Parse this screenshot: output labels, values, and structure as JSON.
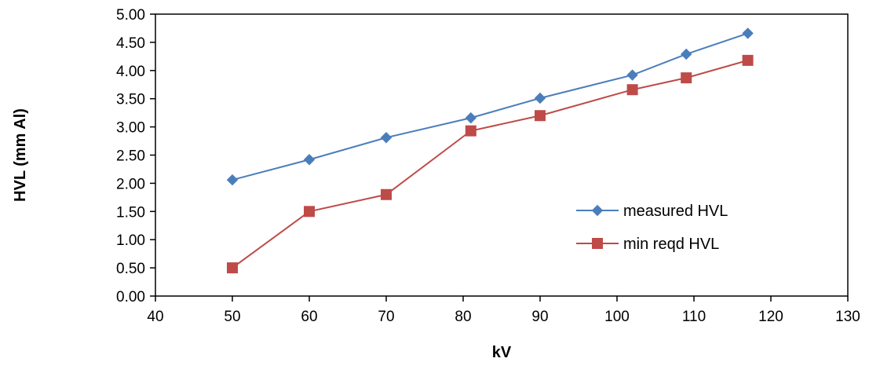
{
  "chart_data": {
    "type": "line",
    "title": "",
    "xlabel": "kV",
    "ylabel": "HVL (mm Al)",
    "xlim": [
      40,
      130
    ],
    "ylim": [
      0,
      5
    ],
    "x_ticks": [
      40,
      50,
      60,
      70,
      80,
      90,
      100,
      110,
      120,
      130
    ],
    "y_ticks": [
      0,
      0.5,
      1,
      1.5,
      2,
      2.5,
      3,
      3.5,
      4,
      4.5,
      5
    ],
    "x_tick_labels": [
      "40",
      "50",
      "60",
      "70",
      "80",
      "90",
      "100",
      "110",
      "120",
      "130"
    ],
    "y_tick_labels": [
      "0.00",
      "0.50",
      "1.00",
      "1.50",
      "2.00",
      "2.50",
      "3.00",
      "3.50",
      "4.00",
      "4.50",
      "5.00"
    ],
    "grid": false,
    "legend_position": "center-right",
    "series": [
      {
        "name": "measured HVL",
        "color": "#4A7EBB",
        "marker": "diamond",
        "points": [
          [
            50,
            2.06
          ],
          [
            60,
            2.42
          ],
          [
            70,
            2.81
          ],
          [
            81,
            3.16
          ],
          [
            90,
            3.51
          ],
          [
            102,
            3.92
          ],
          [
            109,
            4.29
          ],
          [
            117,
            4.66
          ]
        ]
      },
      {
        "name": "min reqd HVL",
        "color": "#BE4B48",
        "marker": "square",
        "points": [
          [
            50,
            0.5
          ],
          [
            60,
            1.5
          ],
          [
            70,
            1.8
          ],
          [
            81,
            2.93
          ],
          [
            90,
            3.2
          ],
          [
            102,
            3.66
          ],
          [
            109,
            3.87
          ],
          [
            117,
            4.18
          ]
        ]
      }
    ]
  }
}
